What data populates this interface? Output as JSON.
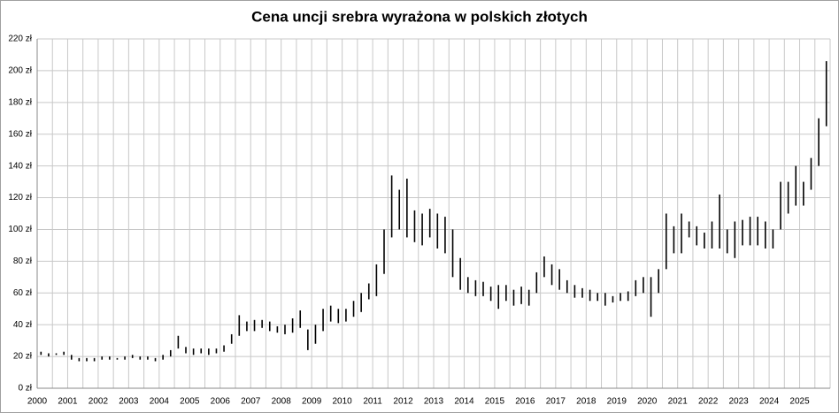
{
  "chart_data": {
    "type": "range",
    "title": "Cena uncji srebra wyrażona w polskich złotych",
    "categories": [
      "2000",
      null,
      null,
      null,
      "2001",
      null,
      null,
      null,
      "2002",
      null,
      null,
      null,
      "2003",
      null,
      null,
      null,
      "2004",
      null,
      null,
      null,
      "2005",
      null,
      null,
      null,
      "2006",
      null,
      null,
      null,
      "2007",
      null,
      null,
      null,
      "2008",
      null,
      null,
      null,
      "2009",
      null,
      null,
      null,
      "2010",
      null,
      null,
      null,
      "2011",
      null,
      null,
      null,
      "2012",
      null,
      null,
      null,
      "2013",
      null,
      null,
      null,
      "2014",
      null,
      null,
      null,
      "2015",
      null,
      null,
      null,
      "2016",
      null,
      null,
      null,
      "2017",
      null,
      null,
      null,
      "2018",
      null,
      null,
      null,
      "2019",
      null,
      null,
      null,
      "2020",
      null,
      null,
      null,
      "2021",
      null,
      null,
      null,
      "2022",
      null,
      null,
      null,
      "2023",
      null,
      null,
      null,
      "2024",
      null,
      null,
      null,
      "2025",
      null,
      null,
      null
    ],
    "high": [
      23,
      22,
      22,
      23,
      21,
      19,
      19,
      19,
      20,
      20,
      19,
      20,
      21,
      20,
      20,
      19,
      21,
      24,
      33,
      26,
      25,
      25,
      25,
      25,
      27,
      34,
      46,
      42,
      43,
      43,
      42,
      39,
      40,
      44,
      49,
      37,
      40,
      50,
      52,
      50,
      50,
      55,
      60,
      66,
      78,
      100,
      134,
      125,
      132,
      112,
      110,
      113,
      110,
      108,
      100,
      82,
      70,
      68,
      67,
      64,
      65,
      65,
      62,
      64,
      62,
      73,
      83,
      78,
      75,
      68,
      65,
      63,
      62,
      60,
      60,
      58,
      60,
      61,
      68,
      70,
      70,
      75,
      110,
      102,
      110,
      105,
      102,
      98,
      105,
      122,
      100,
      105,
      106,
      108,
      108,
      105,
      100,
      130,
      130,
      140,
      130,
      145,
      170,
      206
    ],
    "low": [
      21,
      20,
      21,
      21,
      18,
      17,
      17,
      17,
      18,
      18,
      18,
      18,
      19,
      18,
      18,
      17,
      18,
      20,
      25,
      22,
      21,
      22,
      21,
      22,
      23,
      28,
      33,
      36,
      36,
      38,
      36,
      35,
      34,
      35,
      38,
      24,
      28,
      36,
      42,
      41,
      42,
      45,
      48,
      56,
      58,
      72,
      95,
      100,
      95,
      92,
      90,
      95,
      88,
      85,
      70,
      62,
      60,
      58,
      58,
      55,
      50,
      55,
      52,
      53,
      52,
      60,
      70,
      65,
      62,
      60,
      57,
      57,
      55,
      55,
      52,
      54,
      55,
      55,
      58,
      60,
      45,
      60,
      75,
      85,
      85,
      95,
      90,
      88,
      88,
      88,
      85,
      82,
      90,
      90,
      90,
      88,
      88,
      100,
      110,
      115,
      115,
      125,
      140,
      165
    ],
    "color": "#000000",
    "ylim": [
      0,
      220
    ],
    "yticks": [
      {
        "value": 0,
        "label": "0 zł"
      },
      {
        "value": 20,
        "label": "20 zł"
      },
      {
        "value": 40,
        "label": "40 zł"
      },
      {
        "value": 60,
        "label": "60 zł"
      },
      {
        "value": 80,
        "label": "80 zł"
      },
      {
        "value": 100,
        "label": "100 zł"
      },
      {
        "value": 120,
        "label": "120 zł"
      },
      {
        "value": 140,
        "label": "140 zł"
      },
      {
        "value": 160,
        "label": "160 zł"
      },
      {
        "value": 180,
        "label": "180 zł"
      },
      {
        "value": 200,
        "label": "200 zł"
      },
      {
        "value": 220,
        "label": "220 zł"
      }
    ],
    "grid": true
  }
}
